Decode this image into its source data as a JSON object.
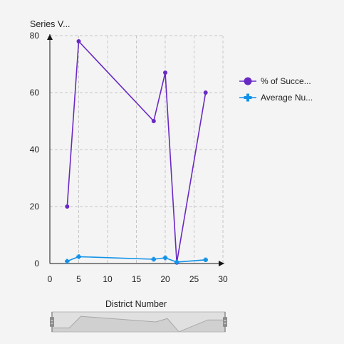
{
  "chart_data": {
    "type": "line",
    "ylabel": "Series V...",
    "xlabel": "District Number",
    "xlim": [
      0,
      30
    ],
    "ylim": [
      0,
      80
    ],
    "x_ticks": [
      0,
      5,
      10,
      15,
      20,
      25,
      30
    ],
    "y_ticks": [
      0,
      20,
      40,
      60,
      80
    ],
    "grid": true,
    "legend_position": "right",
    "series": [
      {
        "name": "% of Succe...",
        "color": "#6929c4",
        "marker": "circle",
        "points": [
          {
            "x": 3,
            "y": 20
          },
          {
            "x": 5,
            "y": 78
          },
          {
            "x": 18,
            "y": 50
          },
          {
            "x": 20,
            "y": 67
          },
          {
            "x": 22,
            "y": 0.3
          },
          {
            "x": 27,
            "y": 60
          }
        ]
      },
      {
        "name": "Average Nu...",
        "color": "#1192e8",
        "marker": "plus",
        "points": [
          {
            "x": 3,
            "y": 0.8
          },
          {
            "x": 5,
            "y": 2.4
          },
          {
            "x": 18,
            "y": 1.5
          },
          {
            "x": 20,
            "y": 2.0
          },
          {
            "x": 22,
            "y": 0.5
          },
          {
            "x": 27,
            "y": 1.3
          }
        ]
      }
    ],
    "zoom_bar": {
      "color_fill": "#d0d0d0",
      "color_line": "#a8a8a8",
      "color_handle": "#8d8d8d"
    }
  }
}
